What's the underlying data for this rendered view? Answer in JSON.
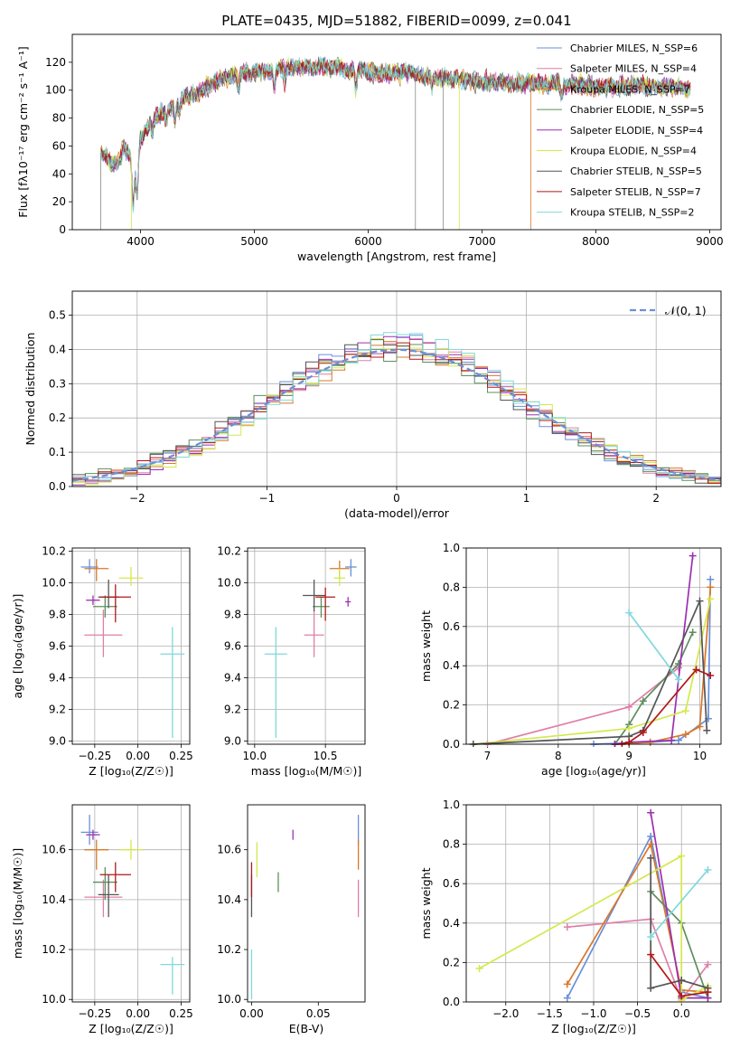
{
  "figure": {
    "title": "PLATE=0435, MJD=51882, FIBERID=0099, z=0.041"
  },
  "chart_data": [
    {
      "type": "line",
      "panel": "spectrum",
      "xlabel": "wavelength [Angstrom, rest frame]",
      "ylabel": "Flux [fλ10⁻¹⁷ erg cm⁻² s⁻¹ A⁻¹]",
      "xlim": [
        3400,
        9100
      ],
      "ylim": [
        0,
        140
      ],
      "xticks": [
        4000,
        5000,
        6000,
        7000,
        8000,
        9000
      ],
      "yticks": [
        0,
        20,
        40,
        60,
        80,
        100,
        120
      ],
      "grid": false,
      "legend_position": "top-right",
      "continuum": {
        "x": [
          3650,
          3700,
          3750,
          3800,
          3850,
          3900,
          3950,
          4000,
          4100,
          4200,
          4300,
          4400,
          4500,
          4600,
          4700,
          4800,
          4900,
          5000,
          5100,
          5200,
          5300,
          5400,
          5500,
          5600,
          5700,
          5800,
          5900,
          6000,
          6100,
          6200,
          6300,
          6400,
          6500,
          6600,
          6700,
          6800,
          6900,
          7000,
          7100,
          7200,
          7300,
          7400,
          7500,
          7600,
          7700,
          7800,
          7900,
          8000,
          8100,
          8200,
          8300,
          8400,
          8500,
          8600,
          8700,
          8830
        ],
        "y": [
          55,
          52,
          48,
          47,
          58,
          55,
          40,
          65,
          78,
          85,
          90,
          95,
          98,
          104,
          108,
          110,
          112,
          113,
          114,
          115,
          116,
          117,
          117,
          117,
          116,
          115,
          114,
          113,
          113,
          113,
          112,
          112,
          110,
          110,
          108,
          108,
          107,
          106,
          106,
          105,
          105,
          105,
          105,
          104,
          104,
          104,
          104,
          103,
          103,
          103,
          103,
          103,
          103,
          102,
          102,
          100
        ]
      },
      "series": [
        {
          "name": "Chabrier MILES, N_SSP=6",
          "color": "#6a8fd8"
        },
        {
          "name": "Salpeter MILES, N_SSP=4",
          "color": "#e07fa8"
        },
        {
          "name": "Kroupa MILES, N_SSP=7",
          "color": "#d8782a"
        },
        {
          "name": "Chabrier ELODIE, N_SSP=5",
          "color": "#5d8f5d"
        },
        {
          "name": "Salpeter ELODIE, N_SSP=4",
          "color": "#9b30b0"
        },
        {
          "name": "Kroupa ELODIE, N_SSP=4",
          "color": "#d4e84e"
        },
        {
          "name": "Chabrier STELIB, N_SSP=5",
          "color": "#555555"
        },
        {
          "name": "Salpeter STELIB, N_SSP=7",
          "color": "#b01818"
        },
        {
          "name": "Kroupa STELIB, N_SSP=2",
          "color": "#7fd8dc"
        }
      ]
    },
    {
      "type": "histogram",
      "panel": "residuals",
      "xlabel": "(data-model)/error",
      "ylabel": "Normed distribution",
      "xlim": [
        -2.5,
        2.5
      ],
      "ylim": [
        0,
        0.57
      ],
      "xticks": [
        -2,
        -1,
        0,
        1,
        2
      ],
      "yticks": [
        0.0,
        0.1,
        0.2,
        0.3,
        0.4,
        0.5
      ],
      "grid": true,
      "legend_position": "top-right",
      "reference_curve": {
        "name": "𝒩(0, 1)",
        "mean": 0,
        "sigma": 1,
        "color": "#6a8fd8"
      },
      "bin_width": 0.1
    },
    {
      "type": "scatter",
      "panel": "age-vs-Z",
      "xlabel": "Z [log₁₀(Z/Z☉)]",
      "ylabel": "age  [log₁₀(age/yr)]",
      "xlim": [
        -0.38,
        0.3
      ],
      "ylim": [
        8.98,
        10.22
      ],
      "xticks": [
        -0.25,
        0.0,
        0.25
      ],
      "yticks": [
        9.0,
        9.2,
        9.4,
        9.6,
        9.8,
        10.0,
        10.2
      ],
      "grid": true,
      "points": [
        {
          "x": -0.28,
          "y": 10.1,
          "xe": 0.05,
          "yl": 0.04,
          "yh": 0.05,
          "color": "#6a8fd8"
        },
        {
          "x": -0.2,
          "y": 9.67,
          "xe": 0.11,
          "yl": 0.14,
          "yh": 0.16,
          "color": "#e07fa8"
        },
        {
          "x": -0.24,
          "y": 10.09,
          "xe": 0.07,
          "yl": 0.08,
          "yh": 0.06,
          "color": "#d8782a"
        },
        {
          "x": -0.19,
          "y": 9.85,
          "xe": 0.07,
          "yl": 0.07,
          "yh": 0.07,
          "color": "#5d8f5d"
        },
        {
          "x": -0.26,
          "y": 9.89,
          "xe": 0.04,
          "yl": 0.03,
          "yh": 0.03,
          "color": "#9b30b0"
        },
        {
          "x": -0.04,
          "y": 10.03,
          "xe": 0.07,
          "yl": 0.05,
          "yh": 0.07,
          "color": "#d4e84e"
        },
        {
          "x": -0.17,
          "y": 9.91,
          "xe": 0.06,
          "yl": 0.07,
          "yh": 0.11,
          "color": "#555555"
        },
        {
          "x": -0.13,
          "y": 9.91,
          "xe": 0.09,
          "yl": 0.16,
          "yh": 0.08,
          "color": "#b01818"
        },
        {
          "x": 0.2,
          "y": 9.55,
          "xe": 0.07,
          "yl": 0.53,
          "yh": 0.17,
          "color": "#7fd8dc"
        }
      ]
    },
    {
      "type": "scatter",
      "panel": "age-vs-mass",
      "xlabel": "mass [log₁₀(M/M☉)]",
      "ylabel": "",
      "xlim": [
        9.95,
        10.78
      ],
      "ylim": [
        8.98,
        10.22
      ],
      "xticks": [
        10.0,
        10.5
      ],
      "yticks": [
        9.0,
        9.2,
        9.4,
        9.6,
        9.8,
        10.0,
        10.2
      ],
      "grid": true,
      "points": [
        {
          "x": 10.68,
          "y": 10.1,
          "xe": 0.04,
          "yl": 0.06,
          "yh": 0.05,
          "color": "#6a8fd8"
        },
        {
          "x": 10.42,
          "y": 9.67,
          "xe": 0.07,
          "yl": 0.14,
          "yh": 0.16,
          "color": "#e07fa8"
        },
        {
          "x": 10.6,
          "y": 10.09,
          "xe": 0.07,
          "yl": 0.06,
          "yh": 0.05,
          "color": "#d8782a"
        },
        {
          "x": 10.47,
          "y": 9.85,
          "xe": 0.06,
          "yl": 0.07,
          "yh": 0.06,
          "color": "#5d8f5d"
        },
        {
          "x": 10.66,
          "y": 9.88,
          "xe": 0.02,
          "yl": 0.03,
          "yh": 0.03,
          "color": "#9b30b0"
        },
        {
          "x": 10.6,
          "y": 10.03,
          "xe": 0.04,
          "yl": 0.05,
          "yh": 0.06,
          "color": "#d4e84e"
        },
        {
          "x": 10.42,
          "y": 9.92,
          "xe": 0.08,
          "yl": 0.1,
          "yh": 0.1,
          "color": "#555555"
        },
        {
          "x": 10.5,
          "y": 9.91,
          "xe": 0.07,
          "yl": 0.15,
          "yh": 0.06,
          "color": "#b01818"
        },
        {
          "x": 10.15,
          "y": 9.55,
          "xe": 0.08,
          "yl": 0.53,
          "yh": 0.17,
          "color": "#7fd8dc"
        }
      ]
    },
    {
      "type": "line",
      "panel": "mass-weight-vs-age",
      "xlabel": "age  [log₁₀(age/yr)]",
      "ylabel": "mass weight",
      "xlim": [
        6.7,
        10.3
      ],
      "ylim": [
        0,
        1.0
      ],
      "xticks": [
        7,
        8,
        9,
        10
      ],
      "yticks": [
        0.0,
        0.2,
        0.4,
        0.6,
        0.8,
        1.0
      ],
      "grid": true,
      "series": [
        {
          "color": "#6a8fd8",
          "x": [
            8.5,
            9.3,
            9.7,
            10.12,
            10.15
          ],
          "y": [
            0.0,
            0.01,
            0.02,
            0.13,
            0.84
          ]
        },
        {
          "color": "#e07fa8",
          "x": [
            7.0,
            9.0,
            9.7
          ],
          "y": [
            0.0,
            0.19,
            0.39
          ]
        },
        {
          "color": "#d8782a",
          "x": [
            8.8,
            9.3,
            9.8,
            10.0,
            10.15
          ],
          "y": [
            0.0,
            0.01,
            0.05,
            0.09,
            0.8
          ]
        },
        {
          "color": "#5d8f5d",
          "x": [
            8.8,
            9.0,
            9.2,
            9.7,
            9.9
          ],
          "y": [
            0.0,
            0.1,
            0.22,
            0.41,
            0.57
          ]
        },
        {
          "color": "#9b30b0",
          "x": [
            8.8,
            9.0,
            9.6,
            9.9
          ],
          "y": [
            0.0,
            0.01,
            0.02,
            0.96
          ]
        },
        {
          "color": "#d4e84e",
          "x": [
            6.8,
            9.0,
            9.8,
            10.15
          ],
          "y": [
            0.0,
            0.08,
            0.17,
            0.74
          ]
        },
        {
          "color": "#555555",
          "x": [
            6.8,
            9.0,
            9.2,
            10.0,
            10.1
          ],
          "y": [
            0.0,
            0.04,
            0.07,
            0.73,
            0.07
          ]
        },
        {
          "color": "#b01818",
          "x": [
            8.9,
            9.0,
            9.2,
            9.95,
            10.15
          ],
          "y": [
            0.0,
            0.01,
            0.06,
            0.38,
            0.35
          ]
        },
        {
          "color": "#7fd8dc",
          "x": [
            9.0,
            9.7
          ],
          "y": [
            0.67,
            0.33
          ]
        }
      ]
    },
    {
      "type": "scatter",
      "panel": "mass-vs-Z",
      "xlabel": "Z [log₁₀(Z/Z☉)]",
      "ylabel": "mass [log₁₀(M/M☉)]",
      "xlim": [
        -0.38,
        0.3
      ],
      "ylim": [
        9.99,
        10.78
      ],
      "xticks": [
        -0.25,
        0.0,
        0.25
      ],
      "yticks": [
        10.0,
        10.2,
        10.4,
        10.6
      ],
      "grid": true,
      "points": [
        {
          "x": -0.28,
          "y": 10.67,
          "xe": 0.05,
          "yl": 0.05,
          "yh": 0.07,
          "color": "#6a8fd8"
        },
        {
          "x": -0.2,
          "y": 10.41,
          "xe": 0.11,
          "yl": 0.08,
          "yh": 0.07,
          "color": "#e07fa8"
        },
        {
          "x": -0.24,
          "y": 10.6,
          "xe": 0.07,
          "yl": 0.08,
          "yh": 0.04,
          "color": "#d8782a"
        },
        {
          "x": -0.19,
          "y": 10.47,
          "xe": 0.07,
          "yl": 0.07,
          "yh": 0.06,
          "color": "#5d8f5d"
        },
        {
          "x": -0.26,
          "y": 10.66,
          "xe": 0.04,
          "yl": 0.02,
          "yh": 0.02,
          "color": "#9b30b0"
        },
        {
          "x": -0.04,
          "y": 10.6,
          "xe": 0.07,
          "yl": 0.04,
          "yh": 0.04,
          "color": "#d4e84e"
        },
        {
          "x": -0.17,
          "y": 10.42,
          "xe": 0.06,
          "yl": 0.09,
          "yh": 0.08,
          "color": "#555555"
        },
        {
          "x": -0.13,
          "y": 10.5,
          "xe": 0.09,
          "yl": 0.07,
          "yh": 0.05,
          "color": "#b01818"
        },
        {
          "x": 0.2,
          "y": 10.14,
          "xe": 0.07,
          "yl": 0.12,
          "yh": 0.03,
          "color": "#7fd8dc"
        }
      ]
    },
    {
      "type": "scatter",
      "panel": "mass-vs-ebv",
      "xlabel": "E(B-V)",
      "ylabel": "",
      "xlim": [
        -0.003,
        0.085
      ],
      "ylim": [
        9.99,
        10.78
      ],
      "xticks": [
        0.0,
        0.05
      ],
      "yticks": [
        10.0,
        10.2,
        10.4,
        10.6
      ],
      "grid": false,
      "points": [
        {
          "x": 0.08,
          "y": 10.67,
          "yl": 0.05,
          "yh": 0.07,
          "color": "#6a8fd8"
        },
        {
          "x": 0.08,
          "y": 10.41,
          "yl": 0.08,
          "yh": 0.07,
          "color": "#e07fa8"
        },
        {
          "x": 0.08,
          "y": 10.6,
          "yl": 0.08,
          "yh": 0.04,
          "color": "#d8782a"
        },
        {
          "x": 0.02,
          "y": 10.47,
          "yl": 0.04,
          "yh": 0.04,
          "color": "#5d8f5d"
        },
        {
          "x": 0.031,
          "y": 10.66,
          "yl": 0.02,
          "yh": 0.02,
          "color": "#9b30b0"
        },
        {
          "x": 0.004,
          "y": 10.56,
          "yl": 0.07,
          "yh": 0.07,
          "color": "#d4e84e"
        },
        {
          "x": 0.0,
          "y": 10.42,
          "yl": 0.09,
          "yh": 0.08,
          "color": "#555555"
        },
        {
          "x": 0.0,
          "y": 10.48,
          "yl": 0.07,
          "yh": 0.07,
          "color": "#b01818"
        },
        {
          "x": 0.0,
          "y": 10.1,
          "yl": 0.1,
          "yh": 0.1,
          "color": "#7fd8dc"
        }
      ]
    },
    {
      "type": "line",
      "panel": "mass-weight-vs-Z",
      "xlabel": "Z [log₁₀(Z/Z☉)]",
      "ylabel": "mass weight",
      "xlim": [
        -2.45,
        0.45
      ],
      "ylim": [
        0,
        1.0
      ],
      "xticks": [
        -2.0,
        -1.5,
        -1.0,
        -0.5,
        0.0
      ],
      "yticks": [
        0.0,
        0.2,
        0.4,
        0.6,
        0.8,
        1.0
      ],
      "grid": true,
      "series": [
        {
          "color": "#6a8fd8",
          "x": [
            -1.3,
            -0.35,
            0.0,
            0.3
          ],
          "y": [
            0.02,
            0.84,
            0.05,
            0.02
          ]
        },
        {
          "color": "#e07fa8",
          "x": [
            -1.3,
            -0.35,
            0.0,
            0.3
          ],
          "y": [
            0.38,
            0.42,
            0.01,
            0.19
          ]
        },
        {
          "color": "#d8782a",
          "x": [
            -1.3,
            -0.35,
            0.0,
            0.3
          ],
          "y": [
            0.09,
            0.8,
            0.06,
            0.05
          ]
        },
        {
          "color": "#5d8f5d",
          "x": [
            -0.35,
            0.0,
            0.3
          ],
          "y": [
            0.56,
            0.4,
            0.02
          ]
        },
        {
          "color": "#9b30b0",
          "x": [
            -0.35,
            0.0,
            0.3
          ],
          "y": [
            0.96,
            0.02,
            0.02
          ]
        },
        {
          "color": "#d4e84e",
          "x": [
            -2.3,
            0.0,
            0.0,
            0.3
          ],
          "y": [
            0.17,
            0.74,
            0.01,
            0.08
          ]
        },
        {
          "color": "#555555",
          "x": [
            -0.35,
            -0.35,
            0.0,
            0.3
          ],
          "y": [
            0.73,
            0.07,
            0.11,
            0.07
          ]
        },
        {
          "color": "#b01818",
          "x": [
            -0.35,
            0.0,
            0.3
          ],
          "y": [
            0.24,
            0.03,
            0.05
          ]
        },
        {
          "color": "#7fd8dc",
          "x": [
            -0.35,
            0.3
          ],
          "y": [
            0.33,
            0.67
          ]
        }
      ]
    }
  ]
}
